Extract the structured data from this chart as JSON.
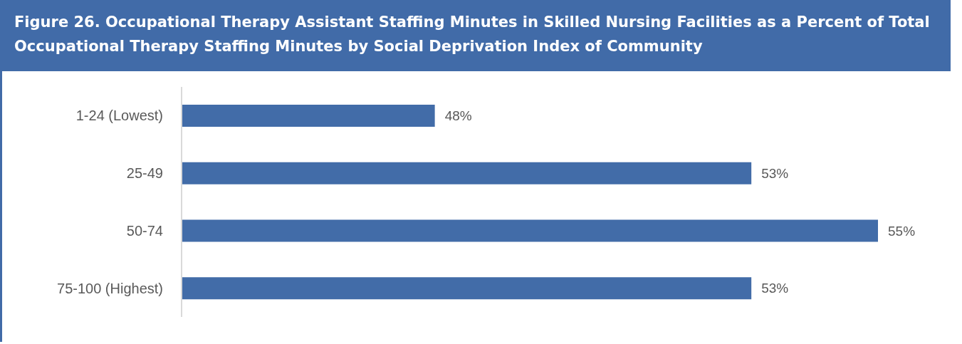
{
  "chart_data": {
    "type": "bar",
    "orientation": "horizontal",
    "title": "Figure 26. Occupational Therapy Assistant Staffing Minutes in Skilled Nursing Facilities as a Percent of Total Occupational Therapy Staffing Minutes by Social Deprivation Index of Community",
    "categories": [
      "1-24 (Lowest)",
      "25-49",
      "50-74",
      "75-100 (Highest)"
    ],
    "values": [
      48,
      53,
      55,
      53
    ],
    "value_labels": [
      "48%",
      "53%",
      "55%",
      "53%"
    ],
    "color": "#426ca8",
    "xlim": [
      44,
      55
    ],
    "tick_labels": "y"
  }
}
